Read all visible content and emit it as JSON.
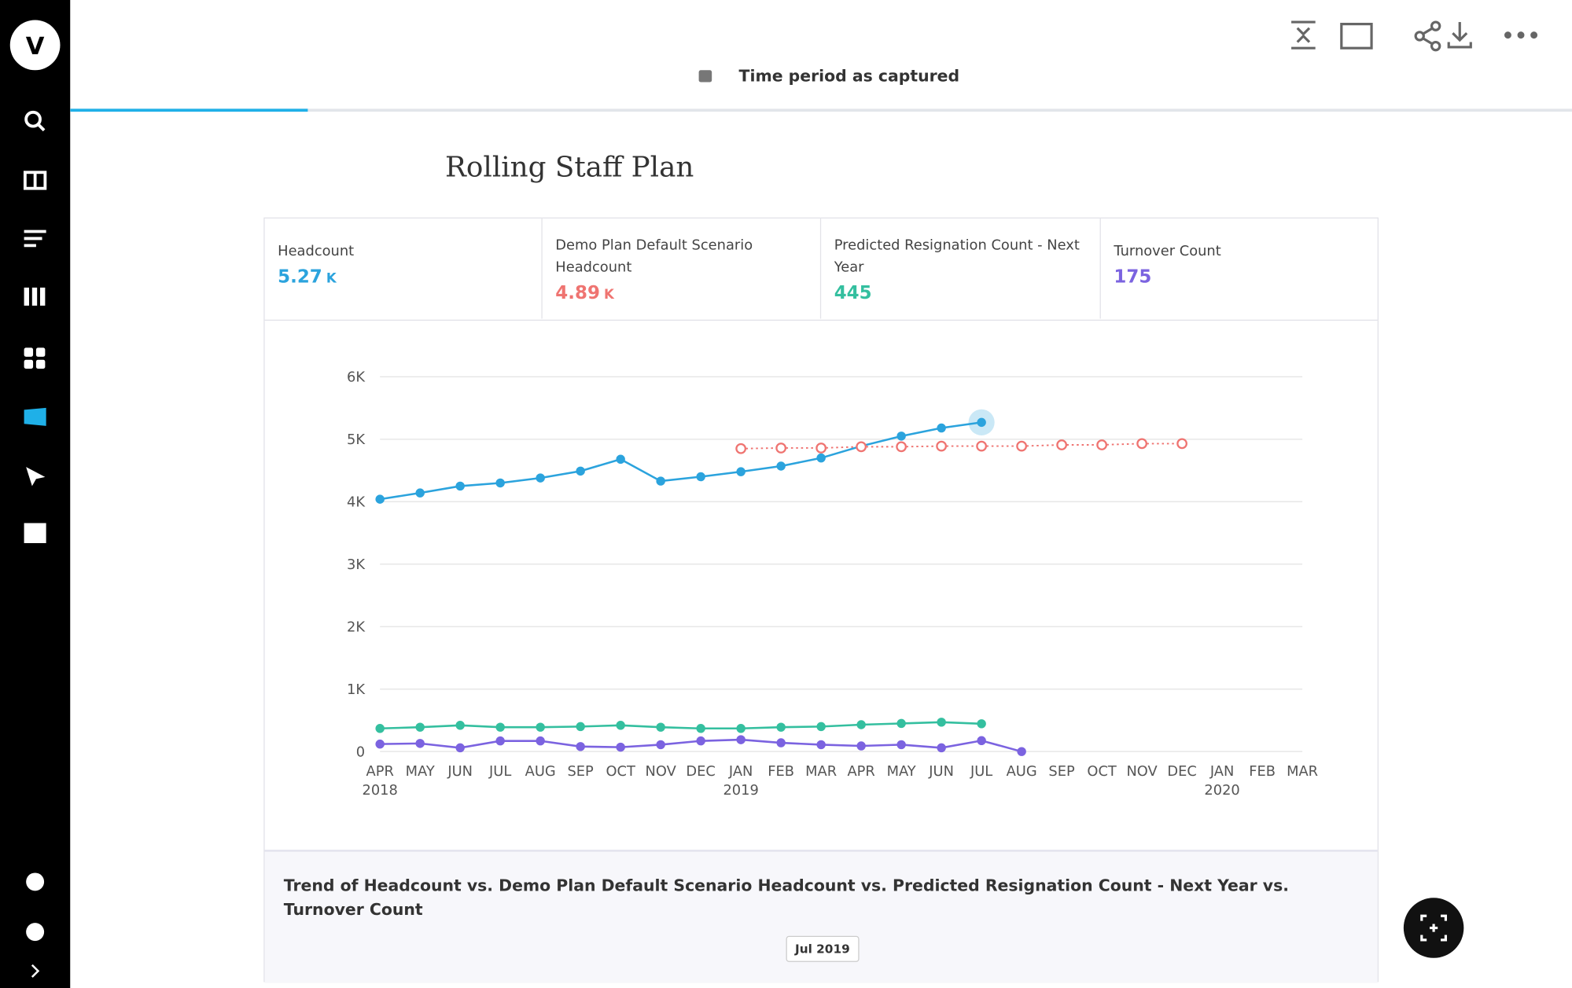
{
  "header": {
    "logo": "V",
    "period": "Time period as captured"
  },
  "chart_data": {
    "type": "line",
    "title": "Rolling Staff Plan",
    "caption": "Trend of Headcount vs. Demo Plan Default Scenario Headcount vs. Predicted Resignation Count - Next Year vs. Turnover Count",
    "selected": "Jul 2019",
    "categories": [
      "APR 2018",
      "MAY",
      "JUN",
      "JUL",
      "AUG",
      "SEP",
      "OCT",
      "NOV",
      "DEC",
      "JAN 2019",
      "FEB",
      "MAR",
      "APR",
      "MAY",
      "JUN",
      "JUL",
      "AUG",
      "SEP",
      "OCT",
      "NOV",
      "DEC",
      "JAN 2020",
      "FEB",
      "MAR"
    ],
    "ylim": [
      0,
      6000
    ],
    "yticks": [
      0,
      {
        "value": 1000,
        "label": "1K"
      },
      {
        "value": 2000,
        "label": "2K"
      },
      {
        "value": 3000,
        "label": "3K"
      },
      {
        "value": 4000,
        "label": "4K"
      },
      {
        "value": 5000,
        "label": "5K"
      },
      {
        "value": 6000,
        "label": "6K"
      }
    ],
    "grid": true,
    "series": [
      {
        "name": "Headcount",
        "color": "#2ba3dd",
        "kpi_value": "5.27",
        "kpi_unit": "K",
        "style": "solid",
        "values": [
          4040,
          4140,
          4250,
          4300,
          4380,
          4490,
          4680,
          4330,
          4400,
          4480,
          4570,
          4700,
          4890,
          5050,
          5180,
          5270,
          null,
          null,
          null,
          null,
          null,
          null,
          null,
          null
        ]
      },
      {
        "name": "Demo Plan Default Scenario Headcount",
        "color": "#ef7471",
        "kpi_value": "4.89",
        "kpi_unit": "K",
        "style": "dotted",
        "values": [
          null,
          null,
          null,
          null,
          null,
          null,
          null,
          null,
          null,
          4850,
          4860,
          4860,
          4880,
          4880,
          4890,
          4890,
          4890,
          4910,
          4910,
          4930,
          4930,
          null,
          null,
          null
        ]
      },
      {
        "name": "Predicted Resignation Count - Next Year",
        "color": "#34bf9f",
        "kpi_value": "445",
        "style": "solid",
        "values": [
          370,
          390,
          420,
          390,
          390,
          400,
          420,
          390,
          370,
          370,
          390,
          400,
          430,
          450,
          470,
          445,
          null,
          null,
          null,
          null,
          null,
          null,
          null,
          null
        ]
      },
      {
        "name": "Turnover Count",
        "color": "#7b63e0",
        "kpi_value": "175",
        "style": "solid",
        "values": [
          120,
          130,
          60,
          170,
          170,
          80,
          70,
          110,
          170,
          190,
          140,
          110,
          90,
          110,
          60,
          175,
          0,
          null,
          null,
          null,
          null,
          null,
          null,
          null
        ]
      }
    ]
  }
}
